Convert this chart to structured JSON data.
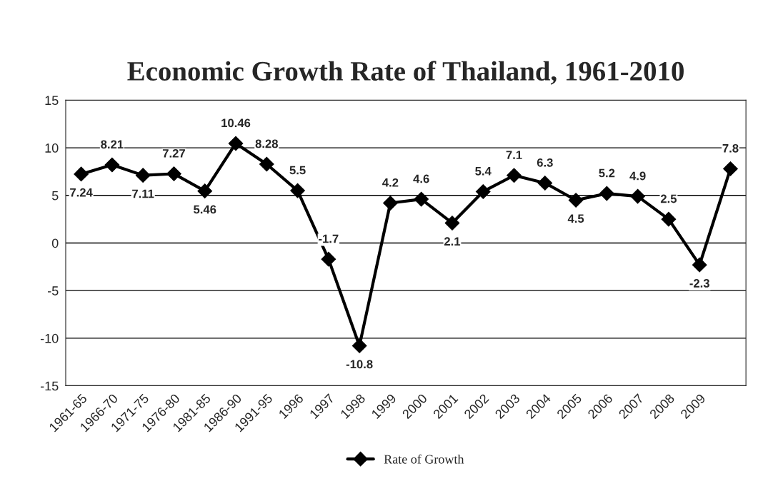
{
  "chart_data": {
    "type": "line",
    "title": "Economic Growth Rate of Thailand, 1961-2010",
    "categories": [
      "1961-65",
      "1966-70",
      "1971-75",
      "1976-80",
      "1981-85",
      "1986-90",
      "1991-95",
      "1996",
      "1997",
      "1998",
      "1999",
      "2000",
      "2001",
      "2002",
      "2003",
      "2004",
      "2005",
      "2006",
      "2007",
      "2008",
      "2009",
      null
    ],
    "series": [
      {
        "name": "Rate of Growth",
        "color": "#000000",
        "values": [
          7.24,
          8.21,
          7.11,
          7.27,
          5.46,
          10.46,
          8.28,
          5.5,
          -1.7,
          -10.8,
          4.2,
          4.6,
          2.1,
          5.4,
          7.1,
          6.3,
          4.5,
          5.2,
          4.9,
          2.5,
          -2.3,
          7.8
        ]
      }
    ],
    "ylim": [
      -15,
      15
    ],
    "yticks": [
      -15,
      -10,
      -5,
      0,
      5,
      10,
      15
    ],
    "grid": "y",
    "legend": "bottom",
    "marker": "diamond",
    "line_style": "solid",
    "data_labels": true
  }
}
